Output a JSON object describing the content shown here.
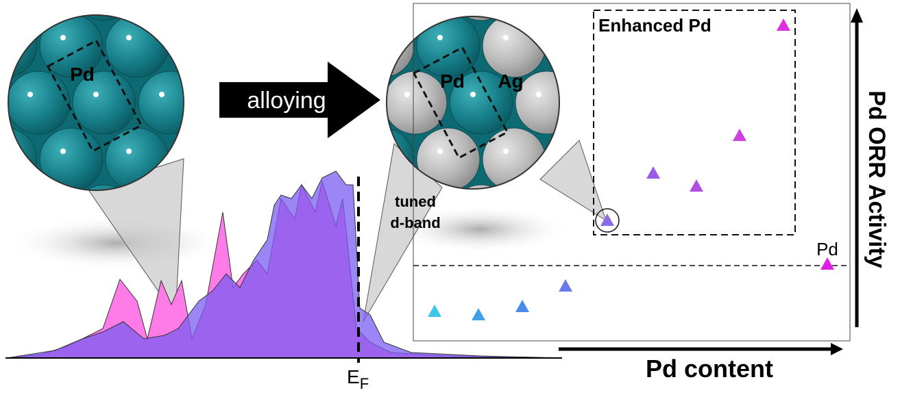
{
  "left_circle": {
    "label": "Pd"
  },
  "arrow": {
    "label": "alloying"
  },
  "right_circle": {
    "labels": [
      "Pd",
      "Ag"
    ]
  },
  "callout": {
    "lines": [
      "tuned",
      "d-band"
    ]
  },
  "fermi_level": {
    "main": "E",
    "sub": "F"
  },
  "plot": {
    "box_label": "Enhanced Pd",
    "point_label": "Pd",
    "y_axis": "Pd ORR Activity",
    "x_axis": "Pd content"
  }
}
